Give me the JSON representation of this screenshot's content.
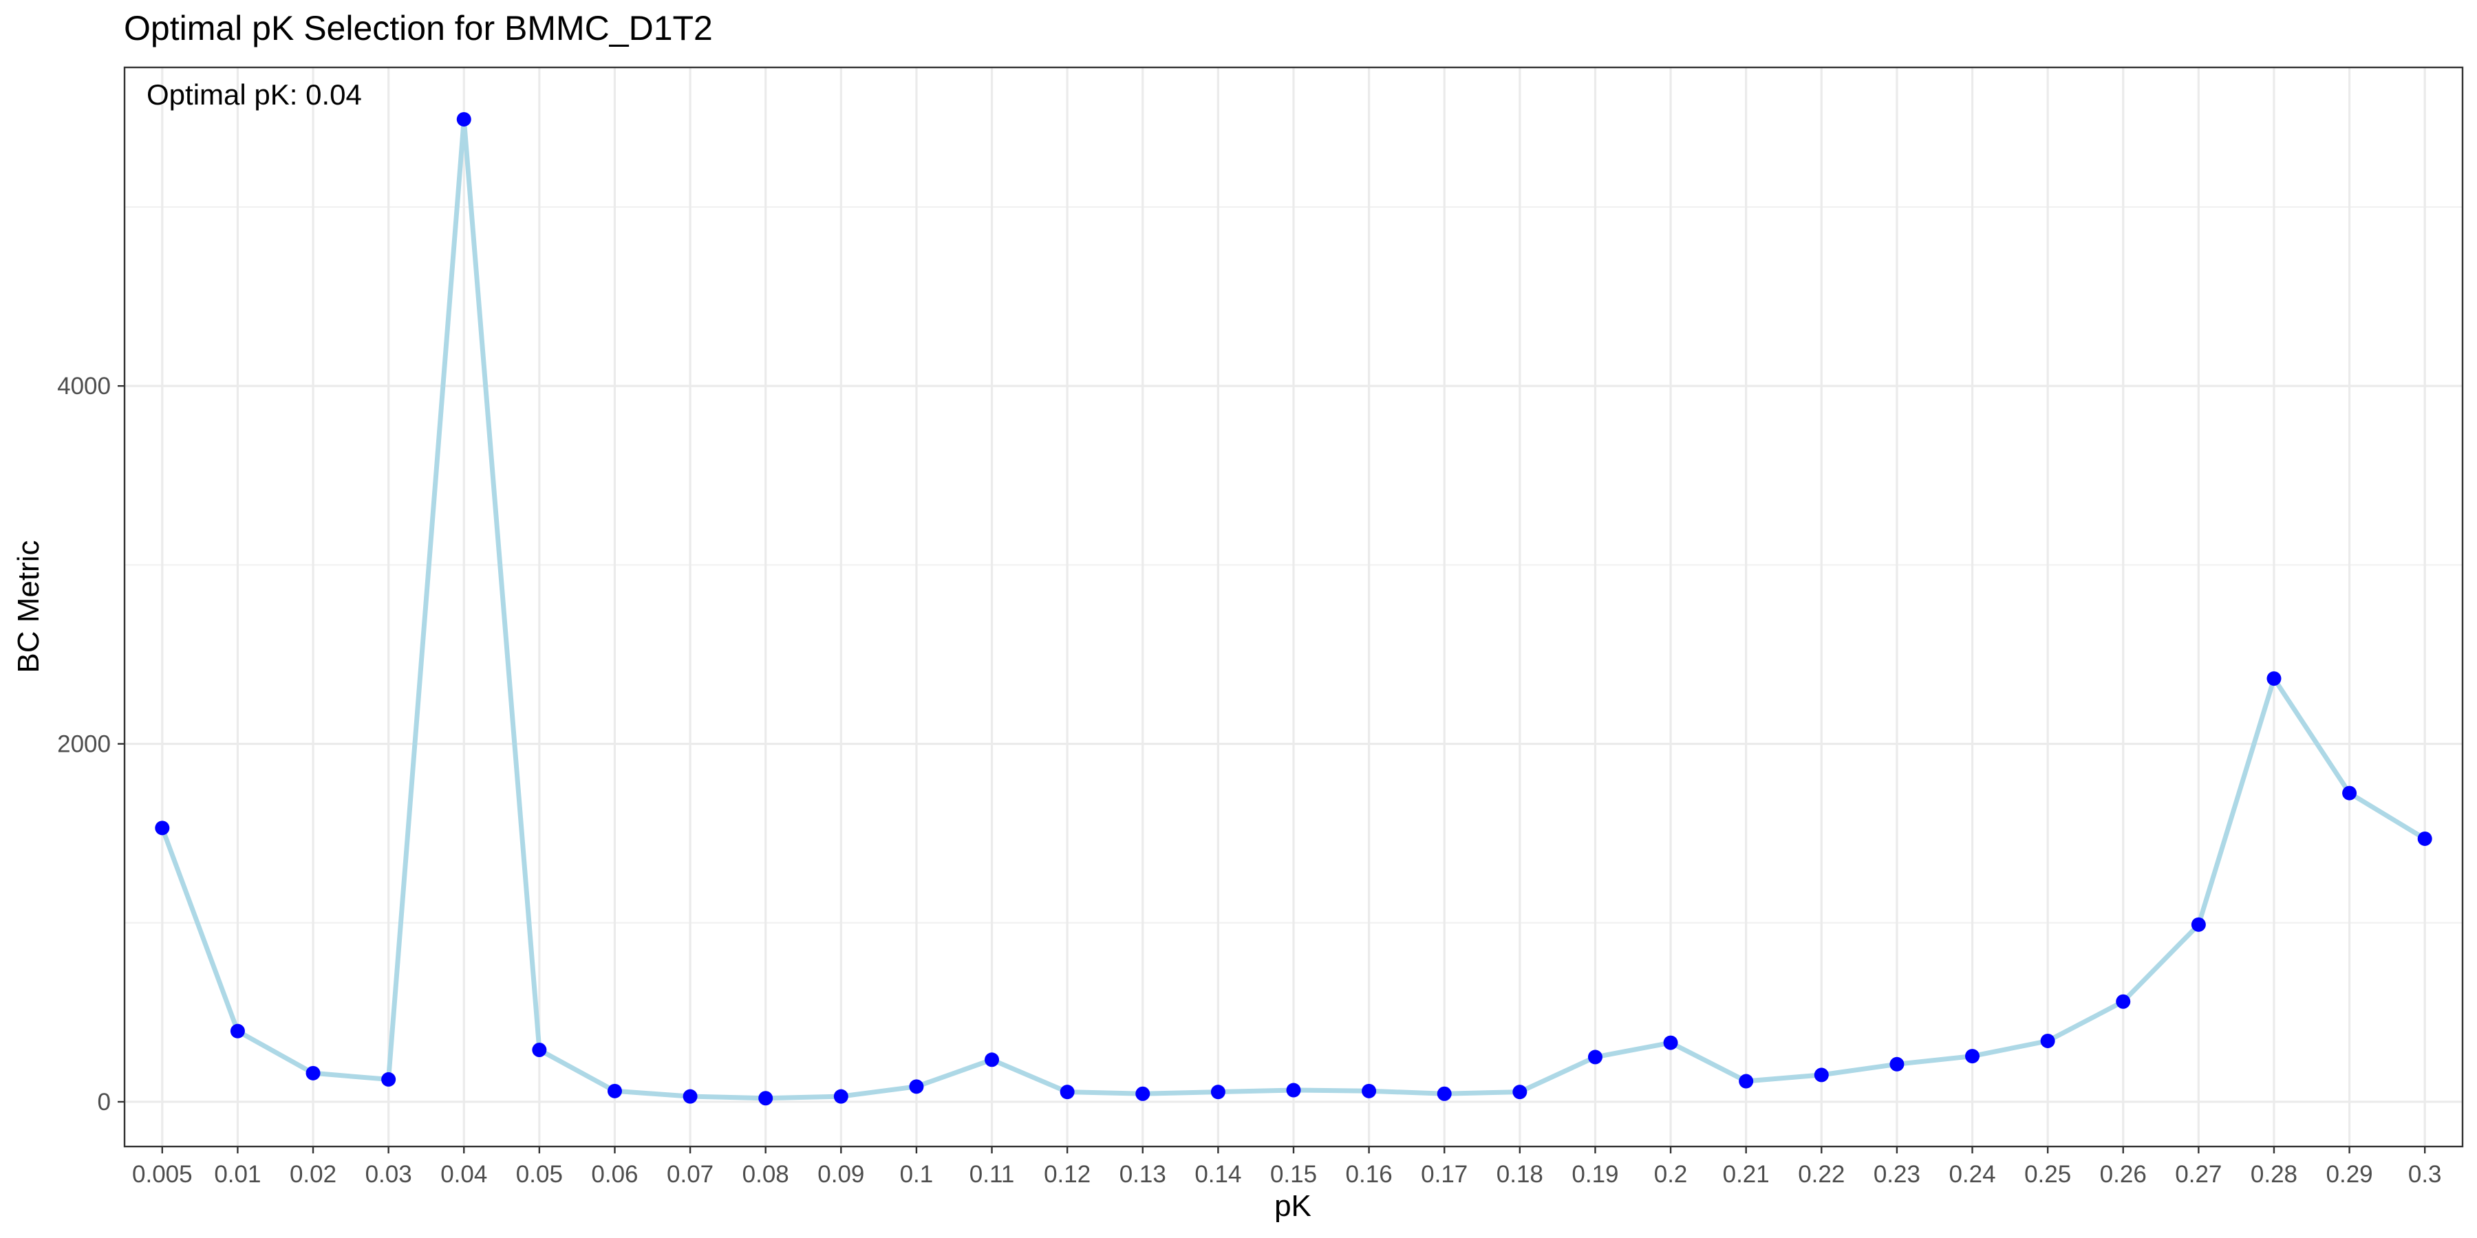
{
  "chart_data": {
    "type": "line",
    "title": "Optimal pK Selection for BMMC_D1T2",
    "annotation": "Optimal pK: 0.04",
    "xlabel": "pK",
    "ylabel": "BC Metric",
    "categories": [
      "0.005",
      "0.01",
      "0.02",
      "0.03",
      "0.04",
      "0.05",
      "0.06",
      "0.07",
      "0.08",
      "0.09",
      "0.1",
      "0.11",
      "0.12",
      "0.13",
      "0.14",
      "0.15",
      "0.16",
      "0.17",
      "0.18",
      "0.19",
      "0.2",
      "0.21",
      "0.22",
      "0.23",
      "0.24",
      "0.25",
      "0.26",
      "0.27",
      "0.28",
      "0.29",
      "0.3"
    ],
    "series": [
      {
        "values": [
          1530,
          395,
          160,
          125,
          5490,
          290,
          60,
          30,
          20,
          30,
          85,
          235,
          55,
          45,
          55,
          65,
          60,
          45,
          55,
          250,
          330,
          115,
          150,
          210,
          255,
          340,
          560,
          990,
          2365,
          1725,
          1470
        ],
        "line_color": "#add8e6",
        "point_color": "#0000ff"
      }
    ],
    "yticks": [
      0,
      2000,
      4000
    ],
    "ylim": [
      -250,
      5780
    ],
    "grid": true,
    "legend": "none"
  }
}
